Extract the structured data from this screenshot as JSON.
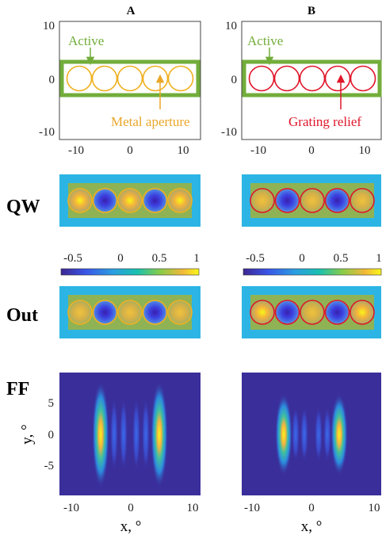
{
  "columns": [
    {
      "label": "A",
      "ring_color": "#f0b020",
      "annotation": "Metal aperture",
      "annotation_color": "#eaa62a"
    },
    {
      "label": "B",
      "ring_color": "#e0162a",
      "annotation": "Grating relief",
      "annotation_color": "#e0162a"
    }
  ],
  "active_label": "Active",
  "active_color": "#72ad3a",
  "row_labels": {
    "qw": "QW",
    "out": "Out",
    "ff": "FF"
  },
  "geometry_axes": {
    "x_ticks": [
      "-10",
      "0",
      "10"
    ],
    "y_ticks": [
      "10",
      "0",
      "-10"
    ]
  },
  "colorbar": {
    "ticks_a": [
      "-0.5",
      "0",
      "0.5",
      "1"
    ],
    "ticks_b": [
      "-0.5",
      "0",
      "0.5",
      "1"
    ]
  },
  "ff_axes": {
    "x_ticks": [
      "-10",
      "0",
      "10"
    ],
    "y_ticks": [
      "5",
      "0",
      "-5"
    ],
    "xlabel": "x, °",
    "ylabel": "y, °"
  },
  "colors": {
    "field_background": "#2cb5e4",
    "active_fill": "#8fb354",
    "ff_background": "#3a2e9a"
  },
  "mode_pattern": {
    "a_qw": [
      1,
      -1,
      1,
      -1,
      1
    ],
    "b_qw": [
      0.4,
      -0.9,
      0.5,
      -0.9,
      0.5
    ],
    "a_out": [
      0.3,
      -0.9,
      0.5,
      -0.9,
      0.3
    ],
    "b_out": [
      0.7,
      -1,
      0.6,
      -0.8,
      0.8
    ]
  }
}
